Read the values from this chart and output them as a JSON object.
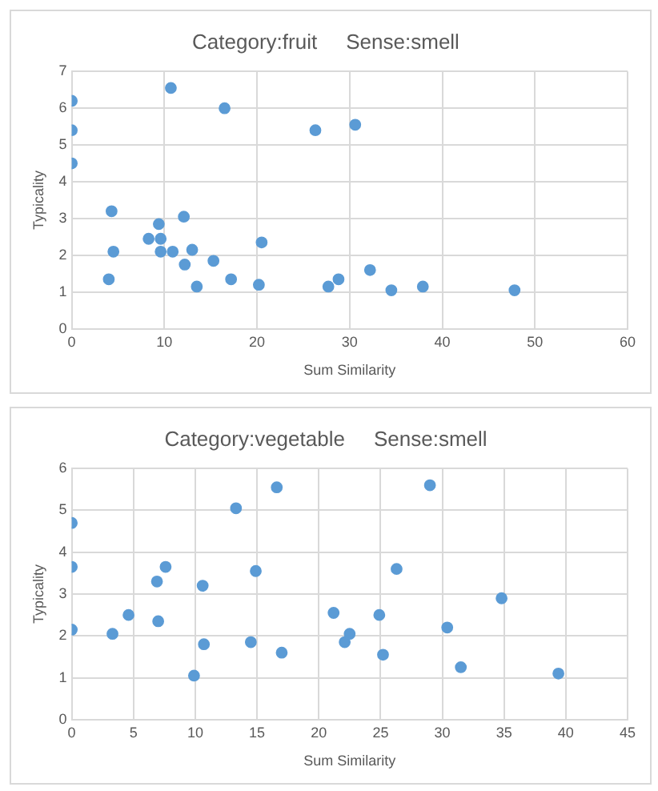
{
  "chart_data": [
    {
      "type": "scatter",
      "title": "Category:fruit     Sense:smell",
      "xlabel": "Sum Similarity",
      "ylabel": "Typicality",
      "xlim": [
        0,
        60
      ],
      "xticks": [
        0,
        10,
        20,
        30,
        40,
        50,
        60
      ],
      "ylim": [
        0,
        7
      ],
      "yticks": [
        0,
        1,
        2,
        3,
        4,
        5,
        6,
        7
      ],
      "grid": true,
      "marker": "circle",
      "series": [
        {
          "color": "#5b9bd5",
          "x": [
            0,
            0,
            0,
            10.7,
            16.5,
            26.3,
            30.6,
            4.3,
            4.5,
            4,
            9.4,
            8.3,
            9.6,
            9.6,
            10.9,
            12.1,
            13,
            12.2,
            13.5,
            15.3,
            17.2,
            20.2,
            20.5,
            27.7,
            28.8,
            32.2,
            34.5,
            37.9,
            47.8
          ],
          "values": [
            6.2,
            5.4,
            4.5,
            6.55,
            6,
            5.4,
            5.55,
            3.2,
            2.1,
            1.35,
            2.85,
            2.45,
            2.45,
            2.1,
            2.1,
            3.05,
            2.15,
            1.75,
            1.15,
            1.85,
            1.35,
            1.2,
            2.35,
            1.15,
            1.35,
            1.6,
            1.05,
            1.15,
            1.05
          ]
        }
      ]
    },
    {
      "type": "scatter",
      "title": "Category:vegetable     Sense:smell",
      "xlabel": "Sum Similarity",
      "ylabel": "Typicality",
      "xlim": [
        0,
        45
      ],
      "xticks": [
        0,
        5,
        10,
        15,
        20,
        25,
        30,
        35,
        40,
        45
      ],
      "ylim": [
        0,
        6
      ],
      "yticks": [
        0,
        1,
        2,
        3,
        4,
        5,
        6
      ],
      "grid": true,
      "marker": "circle",
      "series": [
        {
          "color": "#5b9bd5",
          "x": [
            0,
            0,
            0,
            3.3,
            4.6,
            6.9,
            7.6,
            7,
            9.9,
            10.6,
            10.7,
            13.3,
            14.5,
            14.9,
            16.6,
            17,
            21.2,
            22.1,
            22.5,
            24.9,
            25.2,
            26.3,
            29,
            30.4,
            31.5,
            34.8,
            39.4
          ],
          "values": [
            4.7,
            3.65,
            2.15,
            2.05,
            2.5,
            3.3,
            3.65,
            2.35,
            1.05,
            3.2,
            1.8,
            5.05,
            1.85,
            3.55,
            5.55,
            1.6,
            2.55,
            1.85,
            2.05,
            2.5,
            1.55,
            3.6,
            5.6,
            2.2,
            1.25,
            2.9,
            1.1
          ]
        }
      ]
    }
  ]
}
